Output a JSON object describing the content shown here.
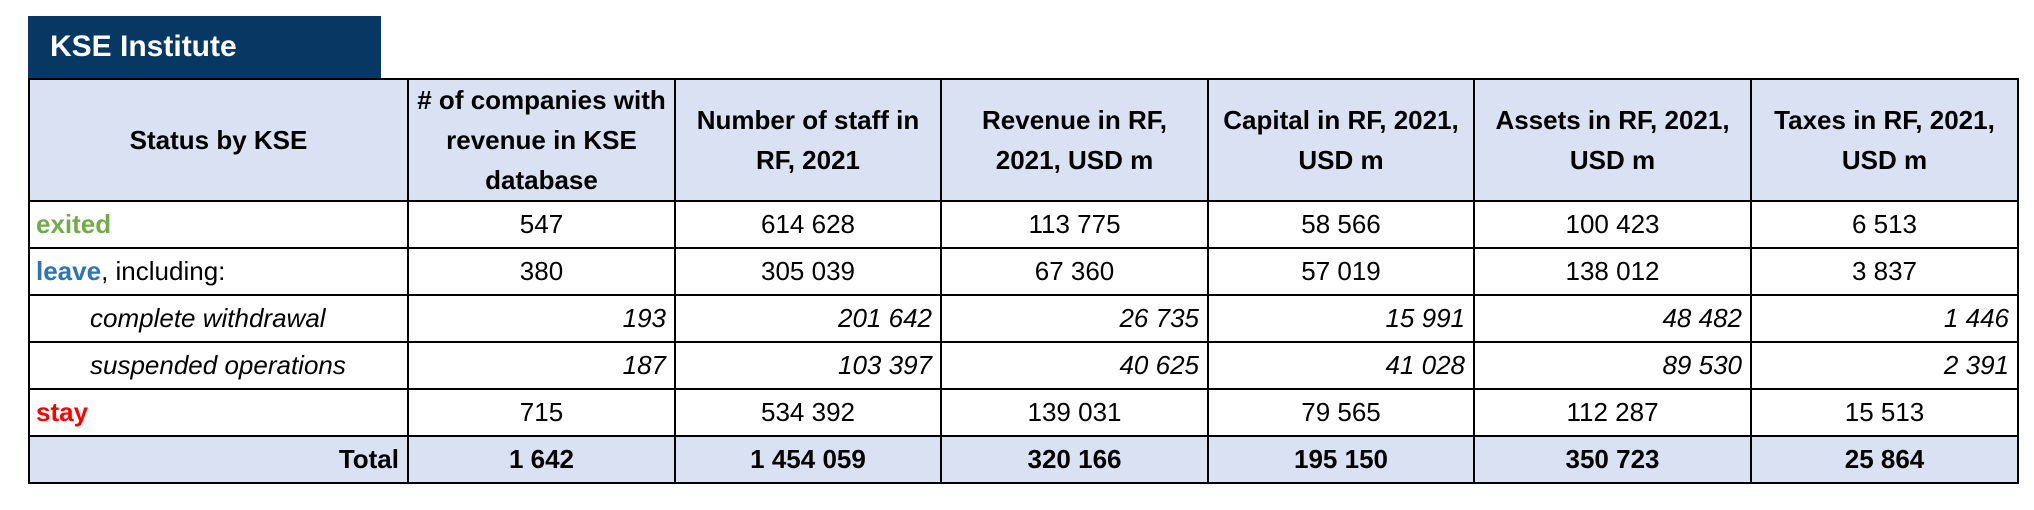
{
  "header": {
    "title": "KSE Institute"
  },
  "table": {
    "columns": [
      "Status by KSE",
      "# of companies with revenue in KSE database",
      "Number of staff in RF, 2021",
      "Revenue in RF, 2021, USD m",
      "Capital in RF, 2021, USD m",
      "Assets in RF, 2021, USD m",
      "Taxes in RF, 2021, USD m"
    ],
    "rows": [
      {
        "status": "exited",
        "values": [
          "547",
          "614 628",
          "113 775",
          "58 566",
          "100 423",
          "6 513"
        ]
      },
      {
        "status": "leave",
        "status_note": ", including:",
        "values": [
          "380",
          "305 039",
          "67 360",
          "57 019",
          "138 012",
          "3 837"
        ]
      },
      {
        "sub_status": "complete withdrawal",
        "values": [
          "193",
          "201 642",
          "26 735",
          "15 991",
          "48 482",
          "1 446"
        ]
      },
      {
        "sub_status": "suspended operations",
        "values": [
          "187",
          "103 397",
          "40 625",
          "41 028",
          "89 530",
          "2 391"
        ]
      },
      {
        "status": "stay",
        "values": [
          "715",
          "534 392",
          "139 031",
          "79 565",
          "112 287",
          "15 513"
        ]
      },
      {
        "total": "Total",
        "values": [
          "1 642",
          "1 454 059",
          "320 166",
          "195 150",
          "350 723",
          "25 864"
        ]
      }
    ]
  }
}
